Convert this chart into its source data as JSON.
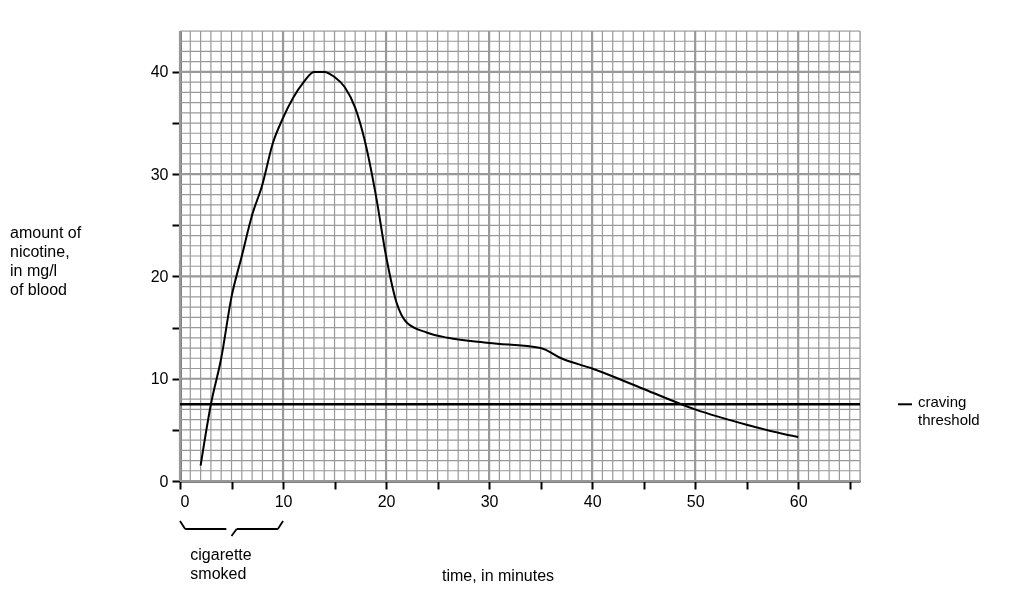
{
  "chart_data": {
    "type": "line",
    "xlabel": "time, in minutes",
    "ylabel": "amount of\nnicotine,\nin mg/l\nof blood",
    "x": [
      2,
      3,
      4,
      5,
      6,
      7,
      8,
      9,
      10,
      11,
      12,
      13,
      14,
      15,
      16,
      17,
      18,
      19,
      20,
      21,
      22,
      24,
      26,
      30,
      35,
      37,
      40,
      45,
      50,
      55,
      59,
      60
    ],
    "series": [
      {
        "color": "#000000",
        "values": [
          1.5,
          7.5,
          12,
          18,
          22,
          26,
          29,
          33,
          35.5,
          37.5,
          39,
          40,
          40,
          39.5,
          38.5,
          36.5,
          33,
          28,
          22,
          17.5,
          15.5,
          14.5,
          14,
          13.5,
          13,
          12,
          11,
          9,
          7,
          5.5,
          4.5,
          4.3
        ]
      }
    ],
    "xlim": [
      0,
      66
    ],
    "ylim": [
      0,
      44
    ],
    "xticks": [
      0,
      {
        "value": 5,
        "label": null
      },
      10,
      {
        "value": 15,
        "label": null
      },
      20,
      {
        "value": 25,
        "label": null
      },
      30,
      {
        "value": 35,
        "label": null
      },
      40,
      {
        "value": 45,
        "label": null
      },
      50,
      {
        "value": 55,
        "label": null
      },
      60,
      {
        "value": 65,
        "label": null
      }
    ],
    "yticks": [
      0,
      {
        "value": 5,
        "label": null
      },
      10,
      {
        "value": 15,
        "label": null
      },
      20,
      {
        "value": 25,
        "label": null
      },
      30,
      {
        "value": 35,
        "label": null
      },
      40
    ],
    "ref_lines": [
      {
        "axis": "y",
        "value": 7.5,
        "label": "craving\nthreshold",
        "color": "#000000"
      }
    ],
    "annotations": [
      "cigarette\nsmoked"
    ],
    "grid": true,
    "marker": "none",
    "line_style": "solid"
  }
}
